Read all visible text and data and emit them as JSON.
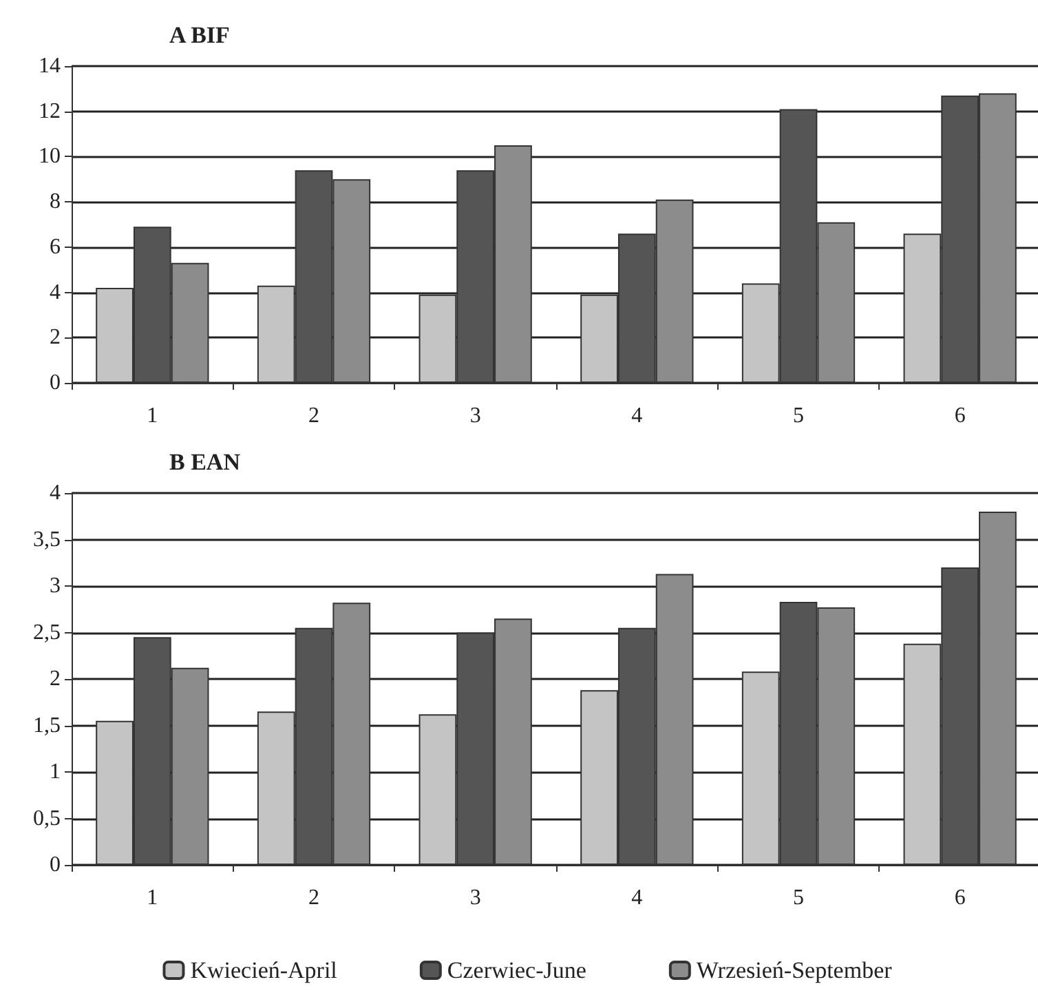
{
  "chart_data": [
    {
      "type": "bar",
      "title": "A BIF",
      "categories": [
        "1",
        "2",
        "3",
        "4",
        "5",
        "6"
      ],
      "series": [
        {
          "color": "#c4c4c4",
          "values": [
            4.2,
            4.3,
            3.9,
            3.9,
            4.4,
            6.6
          ]
        },
        {
          "color": "#555555",
          "values": [
            6.9,
            9.4,
            9.4,
            6.6,
            12.1,
            12.7
          ]
        },
        {
          "color": "#8c8c8c",
          "values": [
            5.3,
            9.0,
            10.5,
            8.1,
            7.1,
            12.8
          ]
        }
      ],
      "ylim": [
        0,
        14
      ],
      "yticks": [
        0,
        2,
        4,
        6,
        8,
        10,
        12,
        14
      ],
      "grid": "y",
      "legend": false
    },
    {
      "type": "bar",
      "title": "B EAN",
      "categories": [
        "1",
        "2",
        "3",
        "4",
        "5",
        "6"
      ],
      "series": [
        {
          "name": "Kwiecień-April",
          "color": "#c4c4c4",
          "values": [
            1.55,
            1.65,
            1.62,
            1.88,
            2.08,
            2.38
          ]
        },
        {
          "name": "Czerwiec-June",
          "color": "#555555",
          "values": [
            2.45,
            2.55,
            2.5,
            2.55,
            2.83,
            3.2
          ]
        },
        {
          "name": "Wrzesień-September",
          "color": "#8c8c8c",
          "values": [
            2.12,
            2.82,
            2.65,
            3.13,
            2.77,
            3.8
          ]
        }
      ],
      "ylim": [
        0,
        4
      ],
      "yticks": [
        0,
        {
          "value": 0.5,
          "label": "0,5"
        },
        1,
        {
          "value": 1.5,
          "label": "1,5"
        },
        2,
        {
          "value": 2.5,
          "label": "2,5"
        },
        3,
        {
          "value": 3.5,
          "label": "3,5"
        },
        4
      ],
      "grid": "y",
      "legend": "bottom"
    }
  ]
}
